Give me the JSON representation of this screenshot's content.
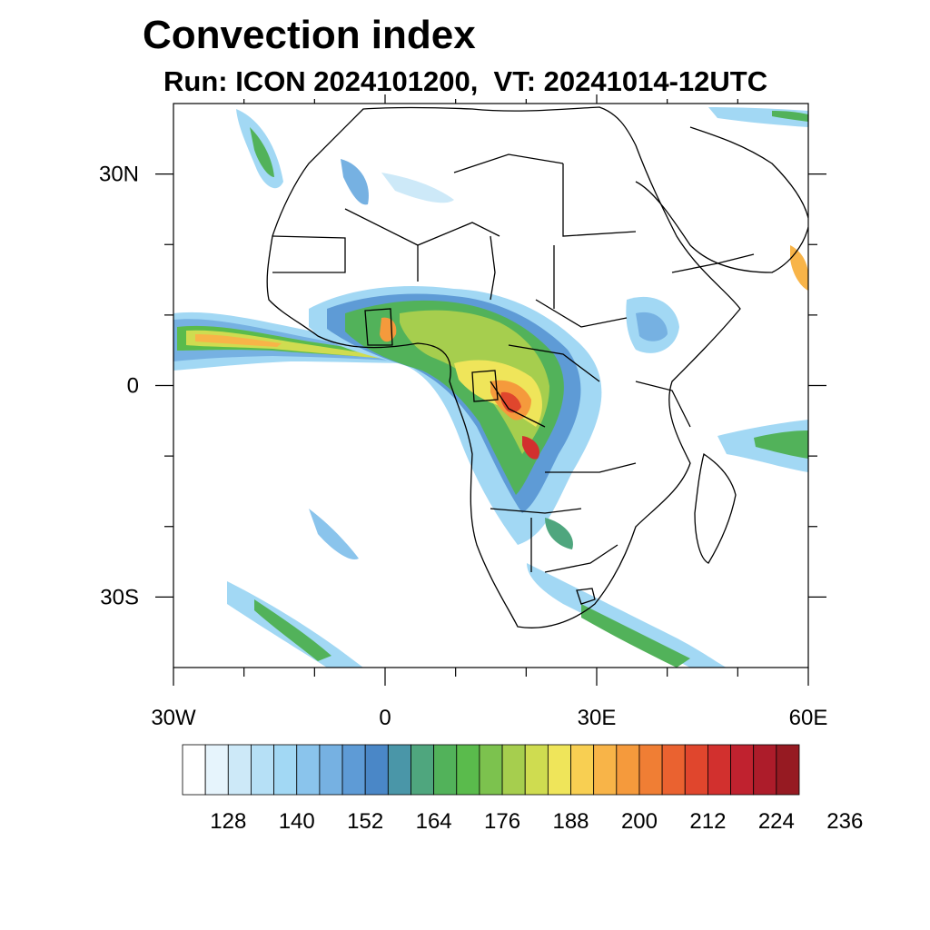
{
  "title": "Convection index",
  "subtitle": "Run: ICON 2024101200,  VT: 20241014-12UTC",
  "map": {
    "lon_range": [
      -30,
      60
    ],
    "lat_range": [
      -40,
      40
    ],
    "lat_labels": [
      {
        "lat": 30,
        "text": "30N"
      },
      {
        "lat": 0,
        "text": "0"
      },
      {
        "lat": -30,
        "text": "30S"
      }
    ],
    "lon_labels": [
      {
        "lon": -30,
        "text": "30W"
      },
      {
        "lon": 0,
        "text": "0"
      },
      {
        "lon": 30,
        "text": "30E"
      },
      {
        "lon": 60,
        "text": "60E"
      }
    ],
    "minor_tick_step_deg": 10
  },
  "colorbar": {
    "colors": [
      "#ffffff",
      "#e6f4fc",
      "#cde9f8",
      "#b6e0f6",
      "#a2d8f4",
      "#8ac4ec",
      "#76b1e2",
      "#5e9bd6",
      "#4a87c7",
      "#4a96a8",
      "#4fa67e",
      "#52b25a",
      "#5abb4c",
      "#7cc24e",
      "#a6ce4e",
      "#cfdc50",
      "#efe55a",
      "#f8cf52",
      "#f8b448",
      "#f59a3c",
      "#f07e34",
      "#ea6230",
      "#e0462d",
      "#d2302e",
      "#c0222f",
      "#ad1c2a",
      "#961a22"
    ],
    "tick_labels": [
      "128",
      "140",
      "152",
      "164",
      "176",
      "188",
      "200",
      "212",
      "224",
      "236"
    ],
    "tick_values": [
      128,
      140,
      152,
      164,
      176,
      188,
      200,
      212,
      224,
      236
    ]
  }
}
